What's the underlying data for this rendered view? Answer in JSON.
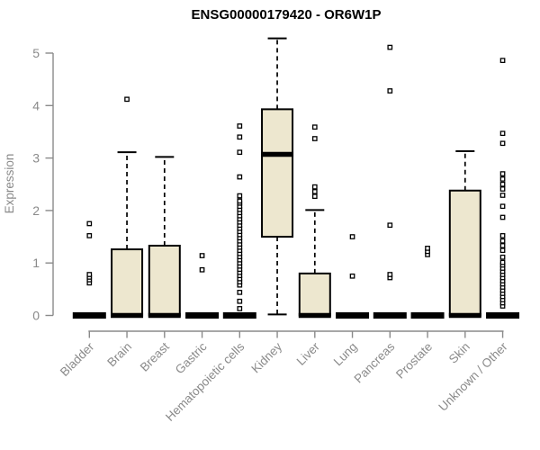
{
  "title": "ENSG00000179420 - OR6W1P",
  "chart_data": {
    "type": "boxplot",
    "title": "ENSG00000179420 - OR6W1P",
    "ylabel": "Expression",
    "xlabel": "",
    "ylim": [
      0,
      5.4
    ],
    "yticks": [
      0,
      1,
      2,
      3,
      4,
      5
    ],
    "grid": false,
    "legend": "none",
    "colors": {
      "box_fill": "#EDE7CF",
      "box_border": "#000000",
      "median": "#000000",
      "flat_bar": "#000000",
      "outlier": "#000000",
      "axis": "#8A8A8A",
      "tick_label": "#8A8A8A",
      "axis_label": "#8A8A8A",
      "title": "#000000",
      "background": "#FFFFFF"
    },
    "categories": [
      "Bladder",
      "Brain",
      "Breast",
      "Gastric",
      "Hematopoietic cells",
      "Kidney",
      "Liver",
      "Lung",
      "Pancreas",
      "Prostate",
      "Skin",
      "Unknown / Other"
    ],
    "series": [
      {
        "name": "Bladder",
        "q1": 0,
        "median": 0,
        "q3": 0,
        "whisker_low": 0,
        "whisker_high": 0,
        "outliers": [
          0.62,
          0.68,
          0.73,
          0.78,
          1.52,
          1.75
        ]
      },
      {
        "name": "Brain",
        "q1": 0,
        "median": 0,
        "q3": 1.26,
        "whisker_low": 0,
        "whisker_high": 3.11,
        "outliers": [
          4.12
        ]
      },
      {
        "name": "Breast",
        "q1": 0,
        "median": 0,
        "q3": 1.33,
        "whisker_low": 0,
        "whisker_high": 3.02,
        "outliers": []
      },
      {
        "name": "Gastric",
        "q1": 0,
        "median": 0,
        "q3": 0,
        "whisker_low": 0,
        "whisker_high": 0,
        "outliers": [
          0.87,
          1.14
        ]
      },
      {
        "name": "Hematopoietic cells",
        "q1": 0,
        "median": 0,
        "q3": 0,
        "whisker_low": 0,
        "whisker_high": 0,
        "outliers": [
          0.13,
          0.27,
          0.44,
          0.58,
          0.64,
          0.7,
          0.76,
          0.82,
          0.88,
          0.94,
          1.0,
          1.06,
          1.12,
          1.18,
          1.24,
          1.3,
          1.36,
          1.42,
          1.48,
          1.54,
          1.6,
          1.66,
          1.72,
          1.78,
          1.84,
          1.9,
          1.96,
          2.02,
          2.08,
          2.14,
          2.18,
          2.28,
          2.64,
          3.11,
          3.4,
          3.61
        ]
      },
      {
        "name": "Kidney",
        "q1": 1.5,
        "median": 3.07,
        "q3": 3.93,
        "whisker_low": 0.02,
        "whisker_high": 5.28,
        "outliers": []
      },
      {
        "name": "Liver",
        "q1": 0,
        "median": 0,
        "q3": 0.8,
        "whisker_low": 0,
        "whisker_high": 2.01,
        "outliers": [
          2.27,
          2.36,
          2.45,
          3.37,
          3.59
        ]
      },
      {
        "name": "Lung",
        "q1": 0,
        "median": 0,
        "q3": 0,
        "whisker_low": 0,
        "whisker_high": 0,
        "outliers": [
          0.75,
          1.5
        ]
      },
      {
        "name": "Pancreas",
        "q1": 0,
        "median": 0,
        "q3": 0,
        "whisker_low": 0,
        "whisker_high": 0,
        "outliers": [
          0.72,
          0.78,
          1.72,
          4.28,
          5.11
        ]
      },
      {
        "name": "Prostate",
        "q1": 0,
        "median": 0,
        "q3": 0,
        "whisker_low": 0,
        "whisker_high": 0,
        "outliers": [
          1.16,
          1.22,
          1.28
        ]
      },
      {
        "name": "Skin",
        "q1": 0,
        "median": 0,
        "q3": 2.38,
        "whisker_low": 0,
        "whisker_high": 3.13,
        "outliers": []
      },
      {
        "name": "Unknown / Other",
        "q1": 0,
        "median": 0,
        "q3": 0,
        "whisker_low": 0,
        "whisker_high": 0,
        "outliers": [
          0.18,
          0.24,
          0.3,
          0.36,
          0.42,
          0.48,
          0.54,
          0.6,
          0.66,
          0.72,
          0.78,
          0.84,
          0.9,
          0.96,
          1.01,
          1.11,
          1.24,
          1.33,
          1.42,
          1.52,
          1.87,
          2.08,
          2.29,
          2.41,
          2.5,
          2.6,
          2.7,
          3.28,
          3.47,
          4.86
        ]
      }
    ]
  }
}
